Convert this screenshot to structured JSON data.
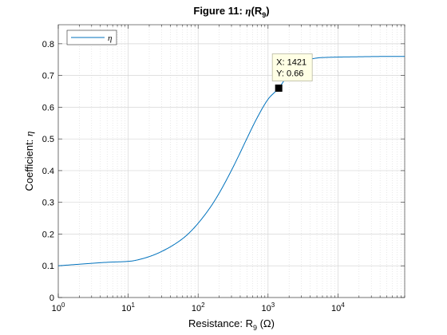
{
  "chart_data": {
    "type": "line",
    "title": "Figure 11: η(R9)",
    "title_parts": {
      "prefix": "Figure 11: ",
      "symbol": "η",
      "open": "(R",
      "sub": "9",
      "close": ")"
    },
    "xlabel": "Resistance: R9 (Ω)",
    "xlabel_parts": {
      "prefix": "Resistance: R",
      "sub": "9",
      "unit": " (Ω)"
    },
    "ylabel": "Coefficient: η",
    "ylabel_parts": {
      "prefix": "Coefficient: ",
      "symbol": "η"
    },
    "x_scale": "log",
    "xlim": [
      1,
      90000
    ],
    "ylim": [
      0,
      0.86
    ],
    "x_ticks": [
      {
        "value": 1,
        "base": "10",
        "exp": "0"
      },
      {
        "value": 10,
        "base": "10",
        "exp": "1"
      },
      {
        "value": 100,
        "base": "10",
        "exp": "2"
      },
      {
        "value": 1000,
        "base": "10",
        "exp": "3"
      },
      {
        "value": 10000,
        "base": "10",
        "exp": "4"
      }
    ],
    "y_ticks": [
      {
        "value": 0,
        "label": "0"
      },
      {
        "value": 0.1,
        "label": "0.1"
      },
      {
        "value": 0.2,
        "label": "0.2"
      },
      {
        "value": 0.3,
        "label": "0.3"
      },
      {
        "value": 0.4,
        "label": "0.4"
      },
      {
        "value": 0.5,
        "label": "0.5"
      },
      {
        "value": 0.6,
        "label": "0.6"
      },
      {
        "value": 0.7,
        "label": "0.7"
      },
      {
        "value": 0.8,
        "label": "0.8"
      }
    ],
    "grid": true,
    "minor_grid": true,
    "legend_position": "top-left",
    "series": [
      {
        "name": "η",
        "color": "#0072BD",
        "x": [
          1,
          2,
          5,
          10,
          12,
          20,
          30,
          50,
          70,
          100,
          150,
          200,
          300,
          400,
          500,
          700,
          1000,
          1421,
          2000,
          3000,
          5000,
          7000,
          10000,
          20000,
          50000,
          90000
        ],
        "y": [
          0.1,
          0.105,
          0.111,
          0.114,
          0.116,
          0.129,
          0.145,
          0.173,
          0.198,
          0.234,
          0.285,
          0.329,
          0.401,
          0.457,
          0.502,
          0.567,
          0.625,
          0.66,
          0.706,
          0.742,
          0.755,
          0.757,
          0.758,
          0.759,
          0.76,
          0.76
        ]
      }
    ],
    "datatip": {
      "x": 1421,
      "y": 0.66,
      "x_label": "X: 1421",
      "y_label": "Y: 0.66"
    }
  }
}
